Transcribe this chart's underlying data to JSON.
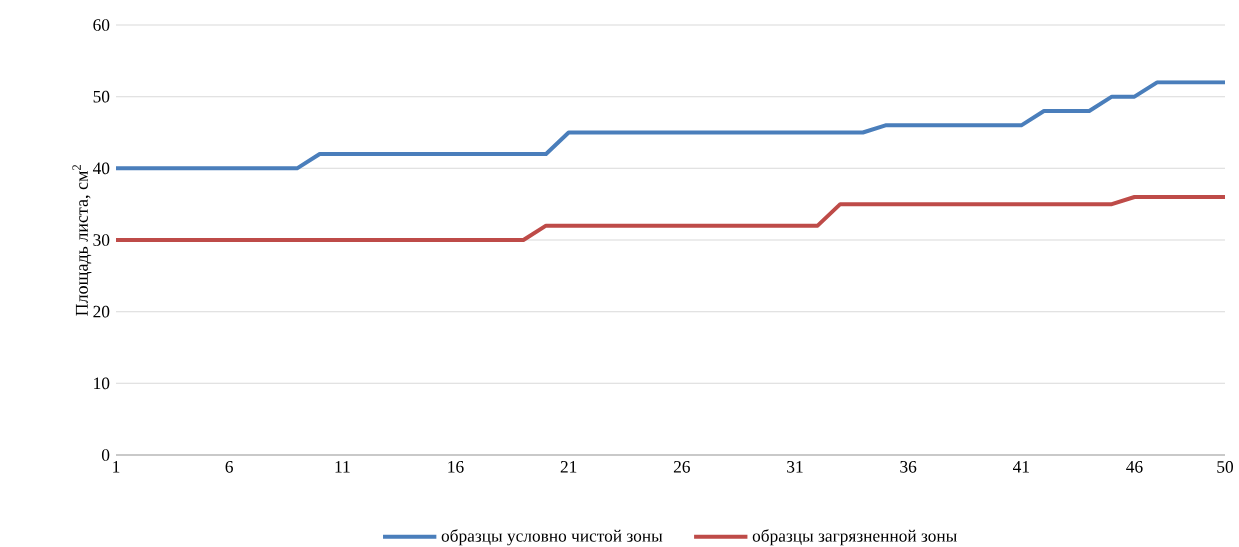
{
  "chart_data": {
    "type": "line",
    "ylabel": "Площадь листа, см$^{2}$",
    "x": [
      1,
      2,
      3,
      4,
      5,
      6,
      7,
      8,
      9,
      10,
      11,
      12,
      13,
      14,
      15,
      16,
      17,
      18,
      19,
      20,
      21,
      22,
      23,
      24,
      25,
      26,
      27,
      28,
      29,
      30,
      31,
      32,
      33,
      34,
      35,
      36,
      37,
      38,
      39,
      40,
      41,
      42,
      43,
      44,
      45,
      46,
      47,
      48,
      49,
      50
    ],
    "xlim": [
      1,
      50
    ],
    "xticks": [
      1,
      6,
      11,
      16,
      21,
      26,
      31,
      36,
      41,
      46,
      50
    ],
    "ylim": [
      0,
      60
    ],
    "yticks": [
      0,
      10,
      20,
      30,
      40,
      50,
      60
    ],
    "grid": "y",
    "legend": "bottom",
    "marker": "none",
    "series": [
      {
        "name": "образцы условно чистой зоны",
        "color": "#4a7ebb",
        "values": [
          40,
          40,
          40,
          40,
          40,
          40,
          40,
          40,
          40,
          42,
          42,
          42,
          42,
          42,
          42,
          42,
          42,
          42,
          42,
          42,
          45,
          45,
          45,
          45,
          45,
          45,
          45,
          45,
          45,
          45,
          45,
          45,
          45,
          45,
          46,
          46,
          46,
          46,
          46,
          46,
          46,
          48,
          48,
          48,
          50,
          50,
          52,
          52,
          52,
          52
        ]
      },
      {
        "name": "образцы загрязненной зоны",
        "color": "#be4b48",
        "values": [
          30,
          30,
          30,
          30,
          30,
          30,
          30,
          30,
          30,
          30,
          30,
          30,
          30,
          30,
          30,
          30,
          30,
          30,
          30,
          32,
          32,
          32,
          32,
          32,
          32,
          32,
          32,
          32,
          32,
          32,
          32,
          32,
          35,
          35,
          35,
          35,
          35,
          35,
          35,
          35,
          35,
          35,
          35,
          35,
          35,
          36,
          36,
          36,
          36,
          36
        ]
      }
    ]
  }
}
